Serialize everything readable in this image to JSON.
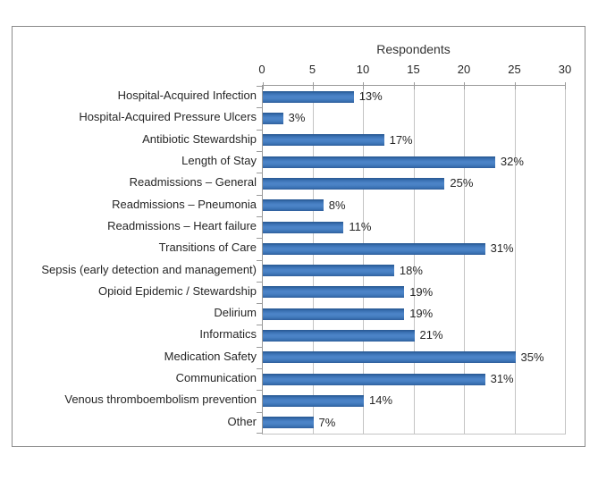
{
  "chart_data": {
    "type": "bar",
    "orientation": "horizontal",
    "title": "Respondents",
    "categories": [
      "Hospital-Acquired Infection",
      "Hospital-Acquired Pressure Ulcers",
      "Antibiotic Stewardship",
      "Length of Stay",
      "Readmissions – General",
      "Readmissions – Pneumonia",
      "Readmissions – Heart failure",
      "Transitions of Care",
      "Sepsis (early detection and management)",
      "Opioid Epidemic / Stewardship",
      "Delirium",
      "Informatics",
      "Medication Safety",
      "Communication",
      "Venous thromboembolism prevention",
      "Other"
    ],
    "values": [
      9,
      2,
      12,
      23,
      18,
      6,
      8,
      22,
      13,
      14,
      14,
      15,
      25,
      22,
      10,
      5
    ],
    "data_labels": [
      "13%",
      "3%",
      "17%",
      "32%",
      "25%",
      "8%",
      "11%",
      "31%",
      "18%",
      "19%",
      "19%",
      "21%",
      "35%",
      "31%",
      "14%",
      "7%"
    ],
    "xlabel": "",
    "ylabel": "",
    "xlim": [
      0,
      30
    ],
    "xticks": [
      0,
      5,
      10,
      15,
      20,
      25,
      30
    ],
    "grid": true,
    "legend": "none",
    "colors": {
      "bar_fill": "#3b74b5",
      "bar_fill_dark": "#2b5c97",
      "gridline": "#c4c4c4",
      "axis_line": "#9a9a9a",
      "outer_border": "#8a8a8a",
      "text": "#262626",
      "title_text": "#333333",
      "background": "#ffffff"
    }
  }
}
